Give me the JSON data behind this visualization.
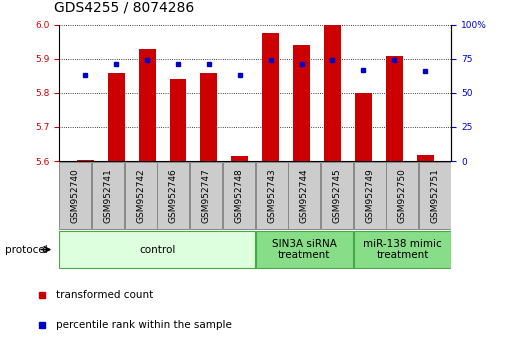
{
  "title": "GDS4255 / 8074286",
  "samples": [
    "GSM952740",
    "GSM952741",
    "GSM952742",
    "GSM952746",
    "GSM952747",
    "GSM952748",
    "GSM952743",
    "GSM952744",
    "GSM952745",
    "GSM952749",
    "GSM952750",
    "GSM952751"
  ],
  "bar_values": [
    5.602,
    5.858,
    5.928,
    5.84,
    5.858,
    5.615,
    5.975,
    5.94,
    5.998,
    5.8,
    5.908,
    5.618
  ],
  "dot_values": [
    63,
    71,
    74,
    71,
    71,
    63,
    74,
    71,
    74,
    67,
    74,
    66
  ],
  "ylim_left": [
    5.6,
    6.0
  ],
  "ylim_right": [
    0,
    100
  ],
  "yticks_left": [
    5.6,
    5.7,
    5.8,
    5.9,
    6.0
  ],
  "yticks_right": [
    0,
    25,
    50,
    75,
    100
  ],
  "bar_color": "#cc0000",
  "dot_color": "#0000cc",
  "bar_width": 0.55,
  "groups": [
    {
      "label": "control",
      "start": 0,
      "end": 6,
      "color": "#ddffdd",
      "edge_color": "#44aa44"
    },
    {
      "label": "SIN3A siRNA\ntreatment",
      "start": 6,
      "end": 9,
      "color": "#88dd88",
      "edge_color": "#44aa44"
    },
    {
      "label": "miR-138 mimic\ntreatment",
      "start": 9,
      "end": 12,
      "color": "#88dd88",
      "edge_color": "#44aa44"
    }
  ],
  "legend_items": [
    {
      "label": "transformed count",
      "color": "#cc0000"
    },
    {
      "label": "percentile rank within the sample",
      "color": "#0000cc"
    }
  ],
  "protocol_label": "protocol",
  "background_color": "#ffffff",
  "tick_label_fontsize": 6.5,
  "title_fontsize": 10,
  "sample_box_color": "#cccccc",
  "sample_box_edge": "#888888"
}
